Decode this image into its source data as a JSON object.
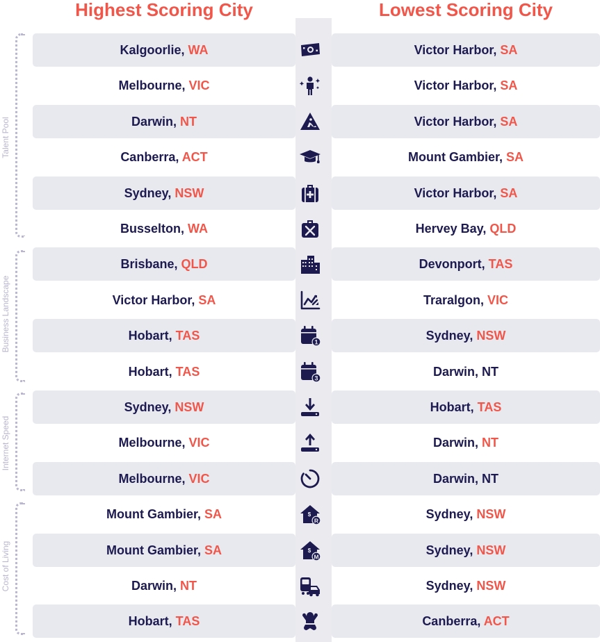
{
  "headers": {
    "highest": "Highest Scoring City",
    "lowest": "Lowest Scoring City"
  },
  "groups": [
    {
      "label": "Talent Pool"
    },
    {
      "label": "Business Landscape"
    },
    {
      "label": "Internet Speed"
    },
    {
      "label": "Cost of Living"
    }
  ],
  "rows": [
    {
      "icon": "money-icon",
      "high_city": "Kalgoorlie, ",
      "high_state": "WA",
      "low_city": "Victor Harbor, ",
      "low_state": "SA"
    },
    {
      "icon": "person-sparkle-icon",
      "high_city": "Melbourne, ",
      "high_state": "VIC",
      "low_city": "Victor Harbor, ",
      "low_state": "SA"
    },
    {
      "icon": "construction-sign-icon",
      "high_city": "Darwin, ",
      "high_state": "NT",
      "low_city": "Victor Harbor, ",
      "low_state": "SA"
    },
    {
      "icon": "graduation-cap-icon",
      "high_city": "Canberra, ",
      "high_state": "ACT",
      "low_city": "Mount Gambier, ",
      "low_state": "SA"
    },
    {
      "icon": "medical-bag-icon",
      "high_city": "Sydney, ",
      "high_state": "NSW",
      "low_city": "Victor Harbor, ",
      "low_state": "SA"
    },
    {
      "icon": "toolbox-icon",
      "high_city": "Busselton, ",
      "high_state": "WA",
      "low_city": "Hervey Bay, ",
      "low_state": "QLD"
    },
    {
      "icon": "buildings-icon",
      "high_city": "Brisbane, ",
      "high_state": "QLD",
      "low_city": "Devonport, ",
      "low_state": "TAS"
    },
    {
      "icon": "chart-trend-icon",
      "high_city": "Victor Harbor, ",
      "high_state": "SA",
      "low_city": "Traralgon, ",
      "low_state": "VIC"
    },
    {
      "icon": "calendar-1-icon",
      "high_city": "Hobart, ",
      "high_state": "TAS",
      "low_city": "Sydney, ",
      "low_state": "NSW"
    },
    {
      "icon": "calendar-3-icon",
      "high_city": "Hobart, ",
      "high_state": "TAS",
      "low_city": "Darwin, ",
      "low_state": "NT",
      "low_state_plain": true
    },
    {
      "icon": "download-icon",
      "high_city": "Sydney, ",
      "high_state": "NSW",
      "low_city": "Hobart, ",
      "low_state": "TAS"
    },
    {
      "icon": "upload-icon",
      "high_city": "Melbourne, ",
      "high_state": "VIC",
      "low_city": "Darwin, ",
      "low_state": "NT"
    },
    {
      "icon": "timer-icon",
      "high_city": "Melbourne, ",
      "high_state": "VIC",
      "low_city": "Darwin, ",
      "low_state": "NT",
      "low_state_plain": true
    },
    {
      "icon": "house-rent-icon",
      "high_city": "Mount Gambier, ",
      "high_state": "SA",
      "low_city": "Sydney, ",
      "low_state": "NSW"
    },
    {
      "icon": "house-mortgage-icon",
      "high_city": "Mount Gambier, ",
      "high_state": "SA",
      "low_city": "Sydney, ",
      "low_state": "NSW"
    },
    {
      "icon": "transport-icon",
      "high_city": "Darwin, ",
      "high_state": "NT",
      "low_city": "Sydney, ",
      "low_state": "NSW"
    },
    {
      "icon": "baby-icon",
      "high_city": "Hobart, ",
      "high_state": "TAS",
      "low_city": "Canberra, ",
      "low_state": "ACT"
    }
  ],
  "colors": {
    "accent": "#f0574a",
    "text": "#1c1a4f",
    "band": "#e8e8ef",
    "strip": "#ebebef",
    "group": "#b9b6cf"
  }
}
